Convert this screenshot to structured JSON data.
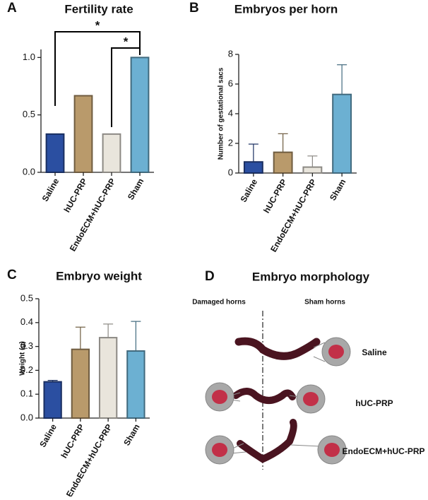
{
  "chart_data": [
    {
      "type": "bar",
      "panel": "A",
      "title": "Fertility rate",
      "categories": [
        "Saline",
        "hUC-PRP",
        "EndoECM+hUC-PRP",
        "Sham"
      ],
      "values": [
        0.333,
        0.667,
        0.333,
        1.0
      ],
      "colors": [
        "#2b4fa1",
        "#b99a6b",
        "#e9e5dc",
        "#6cb0d2"
      ],
      "ylim": [
        0,
        1.07
      ],
      "yticks": [
        {
          "value": 0,
          "label": "0.0"
        },
        0.5,
        {
          "value": 1,
          "label": "1.0"
        }
      ],
      "annotations": [
        "*",
        "*"
      ]
    },
    {
      "type": "bar",
      "panel": "B",
      "title": "Embryos per horn",
      "ylabel": "Number of gestational sacs",
      "categories": [
        "Saline",
        "hUC-PRP",
        "EndoECM+hUC-PRP",
        "Sham"
      ],
      "values": [
        0.75,
        1.4,
        0.4,
        5.3
      ],
      "errors": [
        1.2,
        1.25,
        0.75,
        2.0
      ],
      "colors": [
        "#2b4fa1",
        "#b99a6b",
        "#e9e5dc",
        "#6cb0d2"
      ],
      "ylim": [
        0,
        8
      ],
      "yticks": [
        0,
        2,
        4,
        6,
        8
      ]
    },
    {
      "type": "bar",
      "panel": "C",
      "title": "Embryo weight",
      "ylabel": "Weight (g)",
      "categories": [
        "Saline",
        "hUC-PRP",
        "EndoECM+hUC-PRP",
        "Sham"
      ],
      "values": [
        0.152,
        0.288,
        0.337,
        0.281
      ],
      "errors": [
        0.006,
        0.093,
        0.057,
        0.124
      ],
      "colors": [
        "#2b4fa1",
        "#b99a6b",
        "#e9e5dc",
        "#6cb0d2"
      ],
      "ylim": [
        0,
        0.5
      ],
      "yticks": [
        {
          "value": 0,
          "label": "0.0"
        },
        0.1,
        0.2,
        0.3,
        0.4,
        0.5
      ]
    }
  ],
  "morphology": {
    "panel": "D",
    "title": "Embryo morphology",
    "left_heading": "Damaged horns",
    "right_heading": "Sham horns",
    "rows": [
      "Saline",
      "hUC-PRP",
      "EndoECM+hUC-PRP"
    ]
  }
}
